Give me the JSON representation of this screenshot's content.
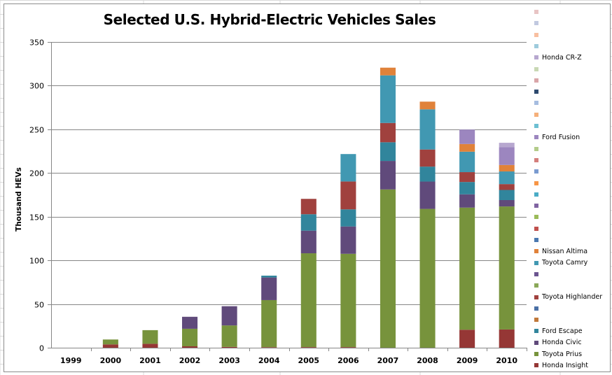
{
  "chart_data": {
    "type": "bar",
    "stacked": true,
    "title": "Selected U.S. Hybrid-Electric Vehicles Sales",
    "xlabel": "",
    "ylabel": "Thousand HEVs",
    "ylim": [
      0,
      350
    ],
    "yticks": [
      0,
      50,
      100,
      150,
      200,
      250,
      300,
      350
    ],
    "grid": true,
    "legend_position": "right",
    "categories": [
      "1999",
      "2000",
      "2001",
      "2002",
      "2003",
      "2004",
      "2005",
      "2006",
      "2007",
      "2008",
      "2009",
      "2010"
    ],
    "series": [
      {
        "name": "Honda Insight",
        "color": "#953735",
        "values": [
          0,
          3.8,
          4.5,
          1.6,
          0.9,
          0.6,
          0.7,
          0.7,
          0,
          0,
          20.6,
          20.9
        ]
      },
      {
        "name": "Toyota Prius",
        "color": "#77933c",
        "values": [
          0,
          5.6,
          15.6,
          20.1,
          24.6,
          53.9,
          107.4,
          106.8,
          181.2,
          158.9,
          139.8,
          140.8
        ]
      },
      {
        "name": "Honda Civic",
        "color": "#604a7b",
        "values": [
          0,
          0,
          0,
          13.7,
          22.0,
          25.9,
          25.9,
          31.3,
          32.6,
          31.3,
          15.2,
          7.3
        ]
      },
      {
        "name": "Ford Escape",
        "color": "#31859c",
        "values": [
          0,
          0,
          0,
          0,
          0,
          2.1,
          18.8,
          19.6,
          21.4,
          17.1,
          14.1,
          11.6
        ]
      },
      {
        "name": "",
        "color": "#c0783a",
        "values": [
          0,
          0,
          0,
          0,
          0,
          0,
          0,
          0,
          0,
          0,
          0,
          0
        ]
      },
      {
        "name": "",
        "color": "#4a6fa5",
        "values": [
          0,
          0,
          0,
          0,
          0,
          0,
          0,
          0,
          0,
          0,
          0,
          0
        ]
      },
      {
        "name": "Toyota Highlander",
        "color": "#a0413e",
        "values": [
          0,
          0,
          0,
          0,
          0,
          0,
          17.6,
          31.9,
          22.1,
          19.6,
          11.3,
          6.7
        ]
      },
      {
        "name": "",
        "color": "#8aa858",
        "values": [
          0,
          0,
          0,
          0,
          0,
          0,
          0,
          0,
          0,
          0,
          0,
          0
        ]
      },
      {
        "name": "",
        "color": "#6b5590",
        "values": [
          0,
          0,
          0,
          0,
          0,
          0,
          0,
          0,
          0,
          0,
          0,
          0
        ]
      },
      {
        "name": "Toyota Camry",
        "color": "#4198b2",
        "values": [
          0,
          0,
          0,
          0,
          0,
          0,
          0,
          31.4,
          54.5,
          46.0,
          23.4,
          14.5
        ]
      },
      {
        "name": "Nissan Altima",
        "color": "#e0823a",
        "values": [
          0,
          0,
          0,
          0,
          0,
          0,
          0,
          0,
          8.8,
          8.8,
          8.8,
          7.4
        ]
      },
      {
        "name": "",
        "color": "#4a78b0",
        "values": [
          0,
          0,
          0,
          0,
          0,
          0,
          0,
          0,
          0,
          0,
          0,
          0
        ]
      },
      {
        "name": "",
        "color": "#c0504d",
        "values": [
          0,
          0,
          0,
          0,
          0,
          0,
          0,
          0,
          0,
          0,
          0,
          0
        ]
      },
      {
        "name": "",
        "color": "#9bbb59",
        "values": [
          0,
          0,
          0,
          0,
          0,
          0,
          0,
          0,
          0,
          0,
          0,
          0
        ]
      },
      {
        "name": "",
        "color": "#8064a2",
        "values": [
          0,
          0,
          0,
          0,
          0,
          0,
          0,
          0,
          0,
          0,
          0,
          0
        ]
      },
      {
        "name": "",
        "color": "#4bacc6",
        "values": [
          0,
          0,
          0,
          0,
          0,
          0,
          0,
          0,
          0,
          0,
          0,
          0
        ]
      },
      {
        "name": "",
        "color": "#f79646",
        "values": [
          0,
          0,
          0,
          0,
          0,
          0,
          0,
          0,
          0,
          0,
          0,
          0
        ]
      },
      {
        "name": "",
        "color": "#7a9bd0",
        "values": [
          0,
          0,
          0,
          0,
          0,
          0,
          0,
          0,
          0,
          0,
          0,
          0
        ]
      },
      {
        "name": "",
        "color": "#d47f7c",
        "values": [
          0,
          0,
          0,
          0,
          0,
          0,
          0,
          0,
          0,
          0,
          0,
          0
        ]
      },
      {
        "name": "",
        "color": "#b3cc8a",
        "values": [
          0,
          0,
          0,
          0,
          0,
          0,
          0,
          0,
          0,
          0,
          0,
          0
        ]
      },
      {
        "name": "Ford Fusion",
        "color": "#9c86bf",
        "values": [
          0,
          0,
          0,
          0,
          0,
          0,
          0,
          0,
          0,
          0,
          16.5,
          20.3
        ]
      },
      {
        "name": "",
        "color": "#6dbfd2",
        "values": [
          0,
          0,
          0,
          0,
          0,
          0,
          0,
          0,
          0,
          0,
          0,
          0
        ]
      },
      {
        "name": "",
        "color": "#f5b07a",
        "values": [
          0,
          0,
          0,
          0,
          0,
          0,
          0,
          0,
          0,
          0,
          0,
          0
        ]
      },
      {
        "name": "",
        "color": "#a6bde0",
        "values": [
          0,
          0,
          0,
          0,
          0,
          0,
          0,
          0,
          0,
          0,
          0,
          0
        ]
      },
      {
        "name": "",
        "color": "#2e4a6e",
        "values": [
          0,
          0,
          0,
          0,
          0,
          0,
          0,
          0,
          0,
          0,
          0,
          0
        ]
      },
      {
        "name": "",
        "color": "#d9a5a8",
        "values": [
          0,
          0,
          0,
          0,
          0,
          0,
          0,
          0,
          0,
          0,
          0,
          0
        ]
      },
      {
        "name": "",
        "color": "#c8d8b4",
        "values": [
          0,
          0,
          0,
          0,
          0,
          0,
          0,
          0,
          0,
          0,
          0,
          0
        ]
      },
      {
        "name": "Honda CR-Z",
        "color": "#b7a7cf",
        "values": [
          0,
          0,
          0,
          0,
          0,
          0,
          0,
          0,
          0,
          0,
          0,
          5.1
        ]
      },
      {
        "name": "",
        "color": "#9ecbdc",
        "values": [
          0,
          0,
          0,
          0,
          0,
          0,
          0,
          0,
          0,
          0,
          0,
          0
        ]
      },
      {
        "name": "",
        "color": "#f8bfa0",
        "values": [
          0,
          0,
          0,
          0,
          0,
          0,
          0,
          0,
          0,
          0,
          0,
          0
        ]
      },
      {
        "name": "",
        "color": "#c1c9e0",
        "values": [
          0,
          0,
          0,
          0,
          0,
          0,
          0,
          0,
          0,
          0,
          0,
          0
        ]
      },
      {
        "name": "",
        "color": "#e8c4c4",
        "values": [
          0,
          0,
          0,
          0,
          0,
          0,
          0,
          0,
          0,
          0,
          0,
          0
        ]
      }
    ]
  }
}
